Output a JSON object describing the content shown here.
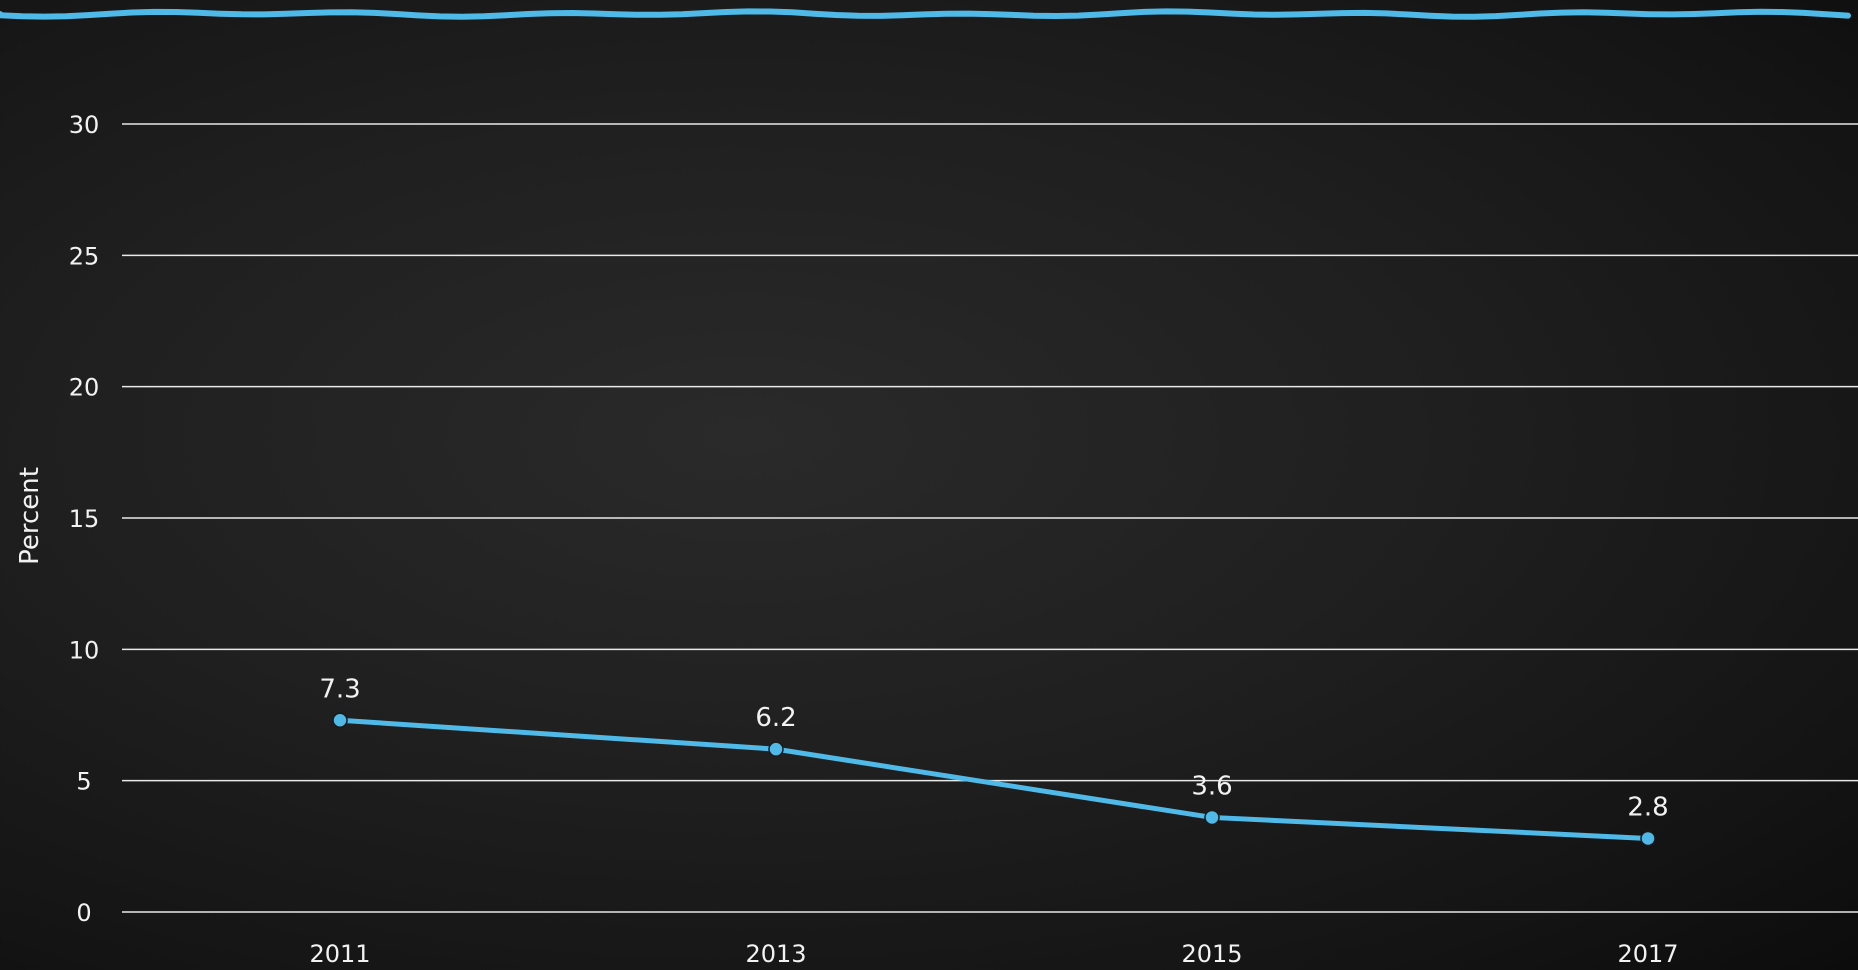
{
  "chart_data": {
    "type": "line",
    "x": [
      "2011",
      "2013",
      "2015",
      "2017"
    ],
    "series": [
      {
        "values": [
          7.3,
          6.2,
          3.6,
          2.8
        ],
        "labels": [
          "7.3",
          "6.2",
          "3.6",
          "2.8"
        ]
      }
    ],
    "ylabel": "Percent",
    "xlabel": "",
    "ylim": [
      0,
      30
    ],
    "yticks": [
      "0",
      "5",
      "10",
      "15",
      "20",
      "25",
      "30"
    ],
    "grid": true,
    "colors": {
      "line": "#4fb9e8",
      "grid": "#ffffff",
      "text": "#f2f2f2",
      "top_stroke": "#4fb9e8"
    }
  }
}
